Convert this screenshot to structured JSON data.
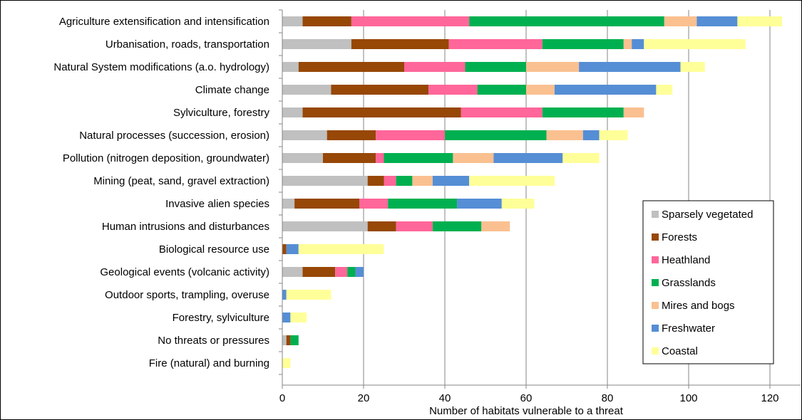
{
  "chart_data": {
    "type": "bar",
    "orientation": "horizontal",
    "stacked": true,
    "xlabel": "Number of habitats vulnerable to a threat",
    "ylabel": "",
    "title": "",
    "xlim": [
      0,
      120
    ],
    "xticks": [
      0,
      20,
      40,
      60,
      80,
      100,
      120
    ],
    "grid": "vertical",
    "legend_position": "right",
    "categories": [
      "Agriculture extensification and intensification",
      "Urbanisation, roads, transportation",
      "Natural System modifications (a.o. hydrology)",
      "Climate change",
      "Sylviculture, forestry",
      "Natural processes (succession, erosion)",
      "Pollution (nitrogen deposition, groundwater)",
      "Mining (peat, sand, gravel extraction)",
      "Invasive alien species",
      "Human intrusions and disturbances",
      "Biological resource use",
      "Geological events (volcanic activity)",
      "Outdoor sports, trampling, overuse",
      "Forestry, sylviculture",
      "No threats or pressures",
      "Fire (natural) and burning"
    ],
    "series": [
      {
        "name": "Sparsely vegetated",
        "color": "#c0c0c0",
        "values": [
          5,
          17,
          4,
          12,
          5,
          11,
          10,
          21,
          3,
          21,
          0,
          5,
          0,
          0,
          1,
          0
        ]
      },
      {
        "name": "Forests",
        "color": "#974706",
        "values": [
          12,
          24,
          26,
          24,
          39,
          12,
          13,
          4,
          16,
          7,
          1,
          8,
          0,
          0,
          1,
          0
        ]
      },
      {
        "name": "Heathland",
        "color": "#ff6699",
        "values": [
          29,
          23,
          15,
          12,
          20,
          17,
          2,
          3,
          7,
          9,
          0,
          3,
          0,
          0,
          0,
          0
        ]
      },
      {
        "name": "Grasslands",
        "color": "#00b050",
        "values": [
          48,
          20,
          15,
          12,
          20,
          25,
          17,
          4,
          17,
          12,
          0,
          2,
          0,
          0,
          2,
          0
        ]
      },
      {
        "name": "Mires and bogs",
        "color": "#fac090",
        "values": [
          8,
          2,
          13,
          7,
          5,
          9,
          10,
          5,
          0,
          7,
          0,
          0,
          0,
          0,
          0,
          0
        ]
      },
      {
        "name": "Freshwater",
        "color": "#558ed5",
        "values": [
          10,
          3,
          25,
          25,
          0,
          4,
          17,
          9,
          11,
          0,
          3,
          2,
          1,
          2,
          0,
          0
        ]
      },
      {
        "name": "Coastal",
        "color": "#ffff99",
        "values": [
          11,
          25,
          6,
          4,
          0,
          7,
          9,
          21,
          8,
          0,
          21,
          0,
          11,
          4,
          0,
          2
        ]
      }
    ]
  }
}
